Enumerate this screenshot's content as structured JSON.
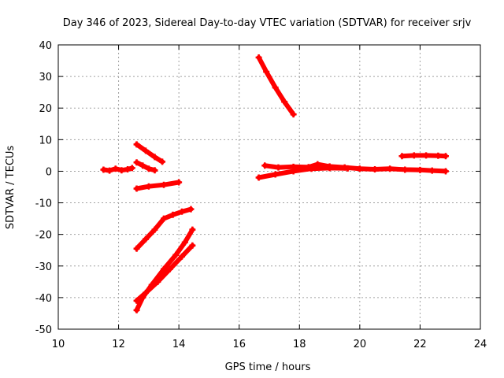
{
  "chart_data": {
    "type": "scatter",
    "title": "Day 346 of 2023, Sidereal Day-to-day VTEC variation (SDTVAR) for receiver srjv",
    "xlabel": "GPS time / hours",
    "ylabel": "SDTVAR / TECUs",
    "xlim": [
      10,
      24
    ],
    "ylim": [
      -50,
      40
    ],
    "xticks": [
      10,
      12,
      14,
      16,
      18,
      20,
      22,
      24
    ],
    "yticks": [
      -50,
      -40,
      -30,
      -20,
      -10,
      0,
      10,
      20,
      30,
      40
    ],
    "grid": true,
    "legend": "none",
    "color": "#ff0000",
    "series": [
      {
        "points": [
          [
            11.5,
            0.5
          ],
          [
            11.7,
            0.2
          ],
          [
            11.9,
            0.8
          ],
          [
            12.1,
            0.3
          ],
          [
            12.3,
            0.6
          ],
          [
            12.45,
            1.0
          ]
        ]
      },
      {
        "points": [
          [
            12.6,
            8.5
          ],
          [
            12.9,
            6.5
          ],
          [
            13.2,
            4.5
          ],
          [
            13.45,
            3.0
          ]
        ]
      },
      {
        "points": [
          [
            12.6,
            2.8
          ],
          [
            12.8,
            1.8
          ],
          [
            13.0,
            0.8
          ],
          [
            13.2,
            0.3
          ]
        ]
      },
      {
        "points": [
          [
            12.6,
            -5.5
          ],
          [
            13.0,
            -4.8
          ],
          [
            13.5,
            -4.3
          ],
          [
            14.0,
            -3.5
          ]
        ]
      },
      {
        "points": [
          [
            12.6,
            -24.5
          ],
          [
            12.9,
            -21.5
          ],
          [
            13.2,
            -18.5
          ],
          [
            13.5,
            -15.0
          ],
          [
            13.8,
            -13.8
          ],
          [
            14.1,
            -12.8
          ],
          [
            14.4,
            -12.0
          ]
        ]
      },
      {
        "points": [
          [
            12.6,
            -44.0
          ],
          [
            12.8,
            -40.0
          ],
          [
            13.1,
            -36.0
          ],
          [
            13.5,
            -31.0
          ],
          [
            13.9,
            -26.5
          ],
          [
            14.2,
            -22.5
          ],
          [
            14.45,
            -18.5
          ]
        ]
      },
      {
        "points": [
          [
            12.6,
            -41.0
          ],
          [
            12.9,
            -38.5
          ],
          [
            13.3,
            -35.0
          ],
          [
            13.7,
            -31.0
          ],
          [
            14.1,
            -27.0
          ],
          [
            14.45,
            -23.5
          ]
        ]
      },
      {
        "points": [
          [
            16.65,
            36.0
          ],
          [
            16.9,
            31.5
          ],
          [
            17.2,
            26.5
          ],
          [
            17.5,
            22.0
          ],
          [
            17.8,
            18.0
          ]
        ]
      },
      {
        "points": [
          [
            16.65,
            -2.0
          ],
          [
            17.2,
            -1.0
          ],
          [
            17.8,
            0.0
          ],
          [
            18.4,
            0.8
          ],
          [
            19.0,
            1.0
          ],
          [
            19.6,
            0.9
          ]
        ]
      },
      {
        "points": [
          [
            16.85,
            1.8
          ],
          [
            17.3,
            1.2
          ],
          [
            17.8,
            1.4
          ],
          [
            18.3,
            1.3
          ],
          [
            18.6,
            2.2
          ],
          [
            19.0,
            1.5
          ],
          [
            19.5,
            1.2
          ],
          [
            20.0,
            0.8
          ],
          [
            20.5,
            0.6
          ],
          [
            21.0,
            0.8
          ],
          [
            21.5,
            0.5
          ],
          [
            22.0,
            0.4
          ],
          [
            22.4,
            0.2
          ],
          [
            22.85,
            0.0
          ]
        ]
      },
      {
        "points": [
          [
            21.4,
            4.8
          ],
          [
            21.8,
            5.0
          ],
          [
            22.2,
            5.0
          ],
          [
            22.6,
            4.9
          ],
          [
            22.85,
            4.8
          ]
        ]
      }
    ]
  }
}
